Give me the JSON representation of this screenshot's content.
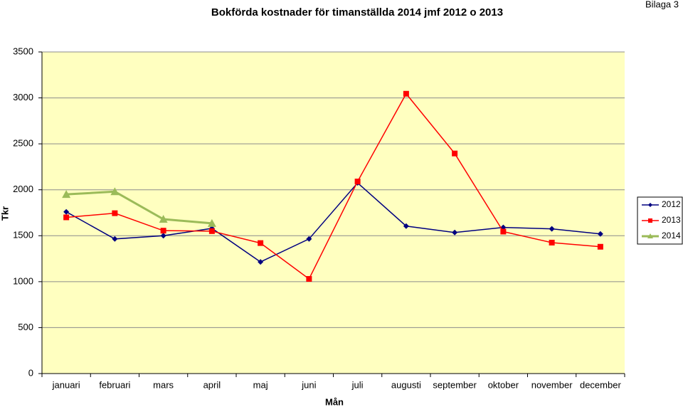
{
  "chart_data": {
    "type": "line",
    "title": "Bokförda kostnader för timanställda 2014 jmf 2012 o 2013",
    "annotation": "Bilaga 3",
    "y_label": "Tkr",
    "x_label": "Mån",
    "categories": [
      "januari",
      "februari",
      "mars",
      "april",
      "maj",
      "juni",
      "juli",
      "augusti",
      "september",
      "oktober",
      "november",
      "december"
    ],
    "series": [
      {
        "name": "2012",
        "color": "#000080",
        "marker": "diamond",
        "values": [
          1760,
          1465,
          1500,
          1580,
          1215,
          1465,
          2075,
          1605,
          1535,
          1590,
          1575,
          1520
        ]
      },
      {
        "name": "2013",
        "color": "#ff0000",
        "marker": "square",
        "values": [
          1700,
          1745,
          1555,
          1550,
          1420,
          1030,
          2090,
          3045,
          2395,
          1545,
          1425,
          1380
        ]
      },
      {
        "name": "2014",
        "color": "#9bbb59",
        "marker": "triangle",
        "values": [
          1950,
          1980,
          1680,
          1635,
          null,
          null,
          null,
          null,
          null,
          null,
          null,
          null
        ]
      }
    ],
    "ylim": [
      0,
      3500
    ],
    "yticks": [
      0,
      500,
      1000,
      1500,
      2000,
      2500,
      3000,
      3500
    ],
    "grid": true,
    "plot_background": "#ffffc0",
    "legend": "right"
  }
}
